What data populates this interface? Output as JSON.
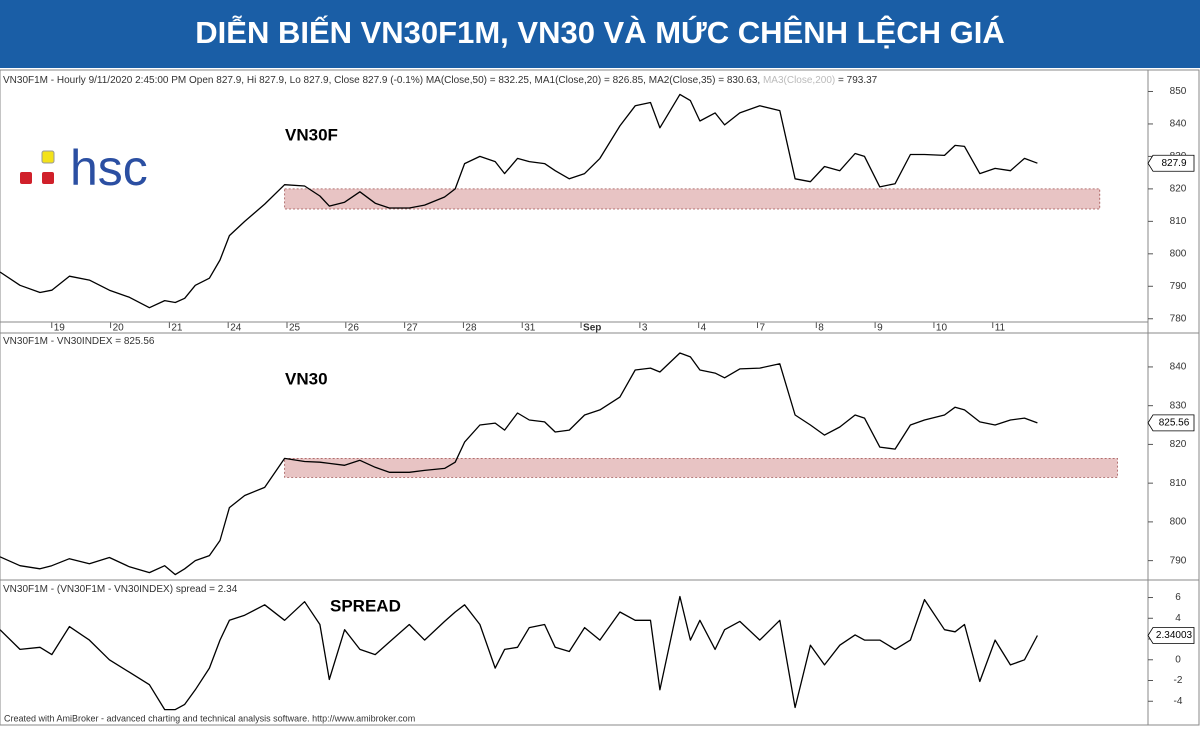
{
  "banner": {
    "title": "DIỄN BIẾN VN30F1M, VN30 VÀ MỨC CHÊNH LỆCH GIÁ",
    "logo": "hsc"
  },
  "footer": "Created with AmiBroker - advanced charting and technical analysis software. http://www.amibroker.com",
  "chart_data": [
    {
      "type": "line",
      "label": "VN30F",
      "header": "VN30F1M - Hourly 9/11/2020 2:45:00 PM Open 827.9, Hi 827.9, Lo 827.9, Close 827.9 (-0.1%) MA(Close,50) = 832.25, MA1(Close,20) = 826.85, MA2(Close,35) = 830.63,",
      "header_faded": "MA3(Close,200)",
      "header_tail": "= 793.37",
      "last_value_label": "827.9",
      "color": "#000000",
      "x": [
        -4.4,
        -2.7,
        -1,
        0,
        1.5,
        3.2,
        4.9,
        6.6,
        8.3,
        9.6,
        10.5,
        11.3,
        12.2,
        13.4,
        14.3,
        15.1,
        16.4,
        18.1,
        19.8,
        21.5,
        22.8,
        23.6,
        24.9,
        26.2,
        27.5,
        28.7,
        30.4,
        31.7,
        33.4,
        34.3,
        35.1,
        36.4,
        37.7,
        38.5,
        39.6,
        40.6,
        41.9,
        42.8,
        44,
        45.3,
        46.6,
        48.3,
        49.6,
        50.9,
        51.7,
        53.4,
        54.3,
        55.1,
        56.4,
        57.2,
        58.5,
        60.2,
        61.9,
        63.2,
        64.5,
        65.7,
        67,
        68.3,
        69.1,
        70.4,
        71.7,
        73,
        74.2,
        75.9,
        76.8,
        77.6,
        78.9,
        80.2,
        81.5,
        82.7,
        83.8
      ],
      "values": [
        794.4,
        790.3,
        788.1,
        788.8,
        793.1,
        791.9,
        788.8,
        786.6,
        783.4,
        785.6,
        785,
        786.3,
        790.3,
        792.5,
        798.1,
        805.6,
        810,
        815.3,
        821.3,
        820.9,
        817.8,
        814.7,
        815.9,
        819.1,
        815.6,
        814.1,
        814.1,
        815,
        817.5,
        820,
        827.8,
        830,
        828.4,
        824.7,
        829.4,
        828.4,
        827.8,
        825.6,
        823.1,
        824.7,
        829.4,
        839.4,
        845.6,
        846.6,
        838.8,
        849.1,
        847.2,
        840.9,
        843.4,
        839.7,
        843.4,
        845.6,
        844.1,
        823.1,
        822.2,
        826.9,
        825.6,
        830.9,
        830,
        820.6,
        821.6,
        830.6,
        830.6,
        830.3,
        833.4,
        833.1,
        824.7,
        826.3,
        825.6,
        829.4,
        827.9
      ],
      "zone": {
        "x": [
          19.8,
          89.1
        ],
        "y": [
          813.8,
          820
        ],
        "color": "#e8c4c4"
      },
      "xlim": [
        -4.4,
        93.2
      ],
      "ylim": [
        779,
        856
      ],
      "yticks": [
        780,
        790,
        800,
        810,
        820,
        830,
        840,
        850
      ],
      "xticks": [
        {
          "value": 0,
          "label": "19"
        },
        {
          "value": 5,
          "label": "20"
        },
        {
          "value": 10,
          "label": "21"
        },
        {
          "value": 15,
          "label": "24"
        },
        {
          "value": 20,
          "label": "25"
        },
        {
          "value": 25,
          "label": "26"
        },
        {
          "value": 30,
          "label": "27"
        },
        {
          "value": 35,
          "label": "28"
        },
        {
          "value": 40,
          "label": "31"
        },
        {
          "value": 45,
          "label": "Sep"
        },
        {
          "value": 50,
          "label": "3"
        },
        {
          "value": 55,
          "label": "4"
        },
        {
          "value": 60,
          "label": "7"
        },
        {
          "value": 65,
          "label": "8"
        },
        {
          "value": 70,
          "label": "9"
        },
        {
          "value": 75,
          "label": "10"
        },
        {
          "value": 80,
          "label": "11"
        }
      ]
    },
    {
      "type": "line",
      "label": "VN30",
      "header": "VN30F1M - VN30INDEX = 825.56",
      "last_value_label": "825.56",
      "color": "#000000",
      "x": [
        -4.4,
        -2.7,
        -1,
        0,
        1.5,
        3.2,
        4.9,
        6.6,
        8.3,
        9.6,
        10.5,
        11.3,
        12.2,
        13.4,
        14.3,
        15.1,
        16.4,
        18.1,
        19.8,
        21.5,
        22.8,
        23.6,
        24.9,
        26.2,
        27.5,
        28.7,
        30.4,
        31.7,
        33.4,
        34.3,
        35.1,
        36.4,
        37.7,
        38.5,
        39.6,
        40.6,
        41.9,
        42.8,
        44,
        45.3,
        46.6,
        48.3,
        49.6,
        50.9,
        51.7,
        53.4,
        54.3,
        55.1,
        56.4,
        57.2,
        58.5,
        60.2,
        61.9,
        63.2,
        64.5,
        65.7,
        67,
        68.3,
        69.1,
        70.4,
        71.7,
        73,
        74.2,
        75.9,
        76.8,
        77.6,
        78.9,
        80.2,
        81.5,
        82.7,
        83.8
      ],
      "values": [
        791.0,
        788.7,
        787.9,
        788.7,
        790.5,
        789.2,
        790.8,
        788.4,
        786.9,
        788.7,
        786.4,
        787.9,
        790.0,
        791.3,
        795.2,
        803.7,
        806.8,
        808.9,
        816.4,
        815.6,
        815.4,
        815.1,
        814.6,
        815.9,
        814.1,
        812.8,
        812.8,
        813.3,
        813.8,
        815.4,
        820.6,
        825.0,
        825.5,
        823.7,
        828.1,
        826.3,
        825.8,
        823.2,
        823.7,
        827.6,
        828.9,
        832.2,
        839.2,
        839.7,
        838.7,
        843.6,
        842.6,
        839.2,
        838.4,
        837.2,
        839.5,
        839.7,
        840.8,
        827.6,
        825.0,
        822.4,
        824.5,
        827.6,
        826.8,
        819.3,
        818.8,
        825.0,
        826.3,
        827.6,
        829.6,
        828.9,
        825.8,
        825.0,
        826.3,
        826.8,
        825.56
      ],
      "zone": {
        "x": [
          19.8,
          90.6
        ],
        "y": [
          811.5,
          816.4
        ],
        "color": "#e8c4c4"
      },
      "xlim": [
        -4.4,
        93.2
      ],
      "ylim": [
        785,
        848.5
      ],
      "yticks": [
        790,
        800,
        810,
        820,
        830,
        840
      ]
    },
    {
      "type": "line",
      "label": "SPREAD",
      "header": "VN30F1M - (VN30F1M - VN30INDEX) spread = 2.34",
      "last_value_label": "2.34003",
      "color": "#000000",
      "x": [
        -4.4,
        -2.7,
        -1,
        0,
        1.5,
        3.2,
        4.9,
        6.6,
        8.3,
        9.6,
        10.5,
        11.3,
        12.2,
        13.4,
        14.3,
        15.1,
        16.4,
        18.1,
        19.8,
        21.5,
        22.8,
        23.6,
        24.9,
        26.2,
        27.5,
        28.7,
        30.4,
        31.7,
        33.4,
        34.3,
        35.1,
        36.4,
        37.7,
        38.5,
        39.6,
        40.6,
        41.9,
        42.8,
        44,
        45.3,
        46.6,
        48.3,
        49.6,
        50.9,
        51.7,
        53.4,
        54.3,
        55.1,
        56.4,
        57.2,
        58.5,
        60.2,
        61.9,
        63.2,
        64.5,
        65.7,
        67,
        68.3,
        69.1,
        70.4,
        71.7,
        73,
        74.2,
        75.9,
        76.8,
        77.6,
        78.9,
        80.2,
        81.5,
        82.7,
        83.8
      ],
      "values": [
        2.9,
        1.0,
        1.2,
        0.5,
        3.2,
        1.9,
        0,
        -1.2,
        -2.4,
        -4.8,
        -4.8,
        -4.3,
        -2.9,
        -0.8,
        1.9,
        3.8,
        4.3,
        5.3,
        3.8,
        5.6,
        3.4,
        -1.9,
        2.9,
        1.0,
        0.5,
        1.7,
        3.4,
        1.9,
        3.7,
        4.6,
        5.3,
        3.4,
        -0.8,
        1.0,
        1.2,
        3.1,
        3.4,
        1.2,
        0.8,
        3.1,
        1.9,
        4.6,
        3.8,
        3.8,
        -2.9,
        6.1,
        1.9,
        3.8,
        1.0,
        2.9,
        3.7,
        1.9,
        3.8,
        -4.6,
        1.4,
        -0.5,
        1.4,
        2.4,
        1.9,
        1.9,
        1.0,
        1.9,
        5.8,
        2.9,
        2.7,
        3.4,
        -2.1,
        1.9,
        -0.5,
        0,
        2.34
      ],
      "xlim": [
        -4.4,
        93.2
      ],
      "ylim": [
        -6,
        7.4
      ],
      "yticks": [
        -4,
        -2,
        0,
        2,
        4,
        6
      ]
    }
  ]
}
